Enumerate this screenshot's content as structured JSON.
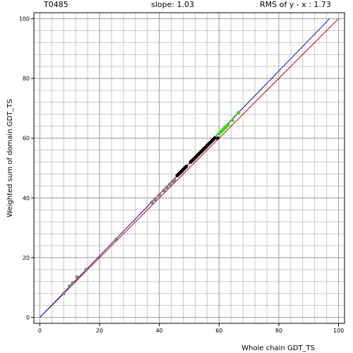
{
  "header": {
    "target_id": "T0485",
    "slope_text": "slope: 1.03",
    "rms_text": "RMS of  y - x : 1.73"
  },
  "chart_data": {
    "type": "scatter",
    "title": "",
    "xlabel": "Whole chain GDT_TS",
    "ylabel": "Weighted sum of domain GDT_TS",
    "xlim": [
      -2,
      102
    ],
    "ylim": [
      -2,
      102
    ],
    "x_ticks": [
      0,
      20,
      40,
      60,
      80,
      100
    ],
    "y_ticks": [
      0,
      20,
      40,
      60,
      80,
      100
    ],
    "grid": true,
    "minor_grid_step": 4,
    "lines": [
      {
        "kind": "identity",
        "color": "#cc0000",
        "x": [
          0,
          100
        ],
        "y": [
          0,
          100
        ]
      },
      {
        "kind": "fit",
        "color": "#0000cc",
        "x": [
          0,
          97
        ],
        "y": [
          0,
          100
        ]
      }
    ],
    "series": [
      {
        "color": "#808080",
        "points": [
          [
            8,
            8
          ],
          [
            10,
            10.5
          ],
          [
            11,
            11.5
          ],
          [
            12.5,
            13.5
          ],
          [
            15.5,
            16
          ],
          [
            25.5,
            26
          ],
          [
            37.5,
            38.5
          ],
          [
            38.5,
            39.5
          ],
          [
            40,
            41
          ],
          [
            41.5,
            42.5
          ],
          [
            42.5,
            43.5
          ],
          [
            43.5,
            44.5
          ],
          [
            44.5,
            45.5
          ],
          [
            45,
            46
          ]
        ]
      },
      {
        "color": "#000000",
        "points": [
          [
            46,
            47.5
          ],
          [
            46.5,
            48
          ],
          [
            47,
            48.5
          ],
          [
            47.5,
            49
          ],
          [
            48,
            49.5
          ],
          [
            48.5,
            50
          ],
          [
            49,
            50.5
          ],
          [
            50.5,
            52
          ],
          [
            51,
            52.5
          ],
          [
            51.5,
            53
          ],
          [
            52,
            53.5
          ],
          [
            52.5,
            54
          ],
          [
            53,
            54.5
          ],
          [
            53.5,
            55
          ],
          [
            54,
            55.5
          ],
          [
            54.5,
            56
          ],
          [
            55,
            56.5
          ],
          [
            55.5,
            57
          ],
          [
            56,
            57.5
          ],
          [
            56.5,
            58
          ],
          [
            57,
            58.5
          ],
          [
            57.5,
            59
          ],
          [
            58,
            59.5
          ],
          [
            58.5,
            60
          ],
          [
            59.5,
            60
          ]
        ]
      },
      {
        "color": "#33dd11",
        "points": [
          [
            60,
            61.5
          ],
          [
            60.5,
            62
          ],
          [
            61,
            62.5
          ],
          [
            61.5,
            63
          ],
          [
            62,
            63.5
          ],
          [
            62.5,
            64
          ],
          [
            63,
            64.5
          ],
          [
            64.5,
            66
          ],
          [
            66.5,
            68.5
          ]
        ]
      }
    ]
  }
}
